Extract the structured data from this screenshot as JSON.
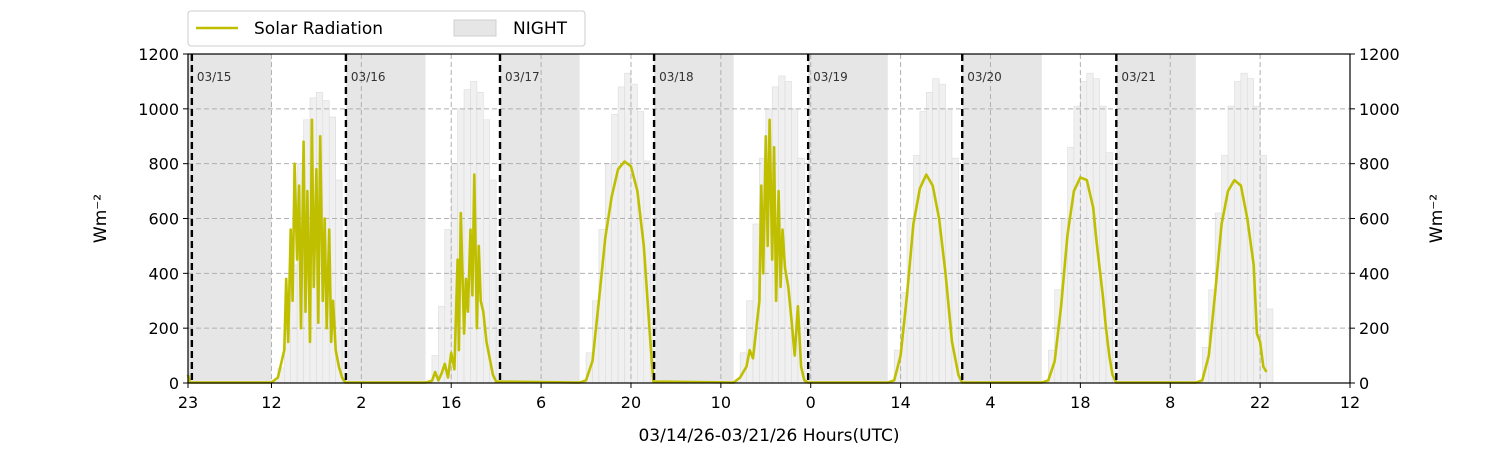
{
  "chart_data": {
    "type": "line",
    "xlabel": "03/14/26-03/21/26  Hours(UTC)",
    "ylabel_left": "Wm⁻²",
    "ylabel_right": "Wm⁻²",
    "ylim": [
      0,
      1200
    ],
    "yticks": [
      0,
      200,
      400,
      600,
      800,
      1000,
      1200
    ],
    "xlim_hours": [
      0,
      181
    ],
    "xticks": [
      {
        "hour": 0,
        "label": "23"
      },
      {
        "hour": 13,
        "label": "12"
      },
      {
        "hour": 27,
        "label": "2"
      },
      {
        "hour": 41,
        "label": "16"
      },
      {
        "hour": 55,
        "label": "6"
      },
      {
        "hour": 69,
        "label": "20"
      },
      {
        "hour": 83,
        "label": "10"
      },
      {
        "hour": 97,
        "label": "0"
      },
      {
        "hour": 111,
        "label": "14"
      },
      {
        "hour": 125,
        "label": "4"
      },
      {
        "hour": 139,
        "label": "18"
      },
      {
        "hour": 153,
        "label": "8"
      },
      {
        "hour": 167,
        "label": "22"
      },
      {
        "hour": 181,
        "label": "12"
      }
    ],
    "grid": true,
    "legend": {
      "placement": "top-left",
      "entries": [
        "Solar Radiation",
        "NIGHT"
      ]
    },
    "day_markers": [
      {
        "hour": 0.6,
        "label": "03/15"
      },
      {
        "hour": 24.6,
        "label": "03/16"
      },
      {
        "hour": 48.6,
        "label": "03/17"
      },
      {
        "hour": 72.6,
        "label": "03/18"
      },
      {
        "hour": 96.6,
        "label": "03/19"
      },
      {
        "hour": 120.6,
        "label": "03/20"
      },
      {
        "hour": 144.6,
        "label": "03/21"
      }
    ],
    "night_periods": [
      [
        0,
        13
      ],
      [
        24.6,
        37
      ],
      [
        48.6,
        61
      ],
      [
        72.6,
        85
      ],
      [
        96.6,
        109
      ],
      [
        120.6,
        133
      ],
      [
        144.6,
        157
      ]
    ],
    "clear_sky_bars": [
      [
        13,
        5
      ],
      [
        14,
        55
      ],
      [
        15,
        200
      ],
      [
        16,
        430
      ],
      [
        17,
        800
      ],
      [
        18,
        960
      ],
      [
        19,
        1040
      ],
      [
        20,
        1060
      ],
      [
        21,
        1030
      ],
      [
        22,
        970
      ],
      [
        23,
        740
      ],
      [
        24,
        350
      ],
      [
        37,
        5
      ],
      [
        38,
        100
      ],
      [
        39,
        280
      ],
      [
        40,
        560
      ],
      [
        41,
        800
      ],
      [
        42,
        1000
      ],
      [
        43,
        1070
      ],
      [
        44,
        1100
      ],
      [
        45,
        1060
      ],
      [
        46,
        960
      ],
      [
        47,
        740
      ],
      [
        48,
        400
      ],
      [
        61,
        5
      ],
      [
        62,
        110
      ],
      [
        63,
        300
      ],
      [
        64,
        560
      ],
      [
        65,
        800
      ],
      [
        66,
        980
      ],
      [
        67,
        1080
      ],
      [
        68,
        1130
      ],
      [
        69,
        1090
      ],
      [
        70,
        990
      ],
      [
        71,
        810
      ],
      [
        72,
        430
      ],
      [
        85,
        5
      ],
      [
        86,
        110
      ],
      [
        87,
        300
      ],
      [
        88,
        580
      ],
      [
        89,
        820
      ],
      [
        90,
        1000
      ],
      [
        91,
        1080
      ],
      [
        92,
        1120
      ],
      [
        93,
        1100
      ],
      [
        94,
        1000
      ],
      [
        95,
        820
      ],
      [
        96,
        500
      ],
      [
        109,
        5
      ],
      [
        110,
        120
      ],
      [
        111,
        330
      ],
      [
        112,
        600
      ],
      [
        113,
        830
      ],
      [
        114,
        990
      ],
      [
        115,
        1060
      ],
      [
        116,
        1110
      ],
      [
        117,
        1090
      ],
      [
        118,
        1000
      ],
      [
        119,
        820
      ],
      [
        120,
        560
      ],
      [
        133,
        5
      ],
      [
        134,
        120
      ],
      [
        135,
        340
      ],
      [
        136,
        600
      ],
      [
        137,
        860
      ],
      [
        138,
        1010
      ],
      [
        139,
        1100
      ],
      [
        140,
        1130
      ],
      [
        141,
        1110
      ],
      [
        142,
        1010
      ],
      [
        143,
        840
      ],
      [
        144,
        560
      ],
      [
        157,
        5
      ],
      [
        158,
        130
      ],
      [
        159,
        340
      ],
      [
        160,
        620
      ],
      [
        161,
        830
      ],
      [
        162,
        1010
      ],
      [
        163,
        1100
      ],
      [
        164,
        1130
      ],
      [
        165,
        1110
      ],
      [
        166,
        1010
      ],
      [
        167,
        830
      ],
      [
        168,
        270
      ]
    ],
    "series": [
      {
        "name": "Solar Radiation",
        "color": "#bfbf00",
        "points": [
          [
            0,
            30
          ],
          [
            0.3,
            2
          ],
          [
            13,
            2
          ],
          [
            14,
            20
          ],
          [
            15,
            120
          ],
          [
            15.3,
            380
          ],
          [
            15.6,
            150
          ],
          [
            16,
            560
          ],
          [
            16.3,
            300
          ],
          [
            16.6,
            800
          ],
          [
            17,
            450
          ],
          [
            17.3,
            720
          ],
          [
            17.6,
            200
          ],
          [
            18,
            880
          ],
          [
            18.3,
            260
          ],
          [
            18.6,
            700
          ],
          [
            19,
            150
          ],
          [
            19.3,
            960
          ],
          [
            19.6,
            350
          ],
          [
            20,
            780
          ],
          [
            20.3,
            220
          ],
          [
            20.6,
            900
          ],
          [
            21,
            300
          ],
          [
            21.3,
            600
          ],
          [
            21.6,
            200
          ],
          [
            22,
            560
          ],
          [
            22.3,
            150
          ],
          [
            22.6,
            300
          ],
          [
            23,
            120
          ],
          [
            23.5,
            60
          ],
          [
            24,
            20
          ],
          [
            24.5,
            2
          ],
          [
            37,
            2
          ],
          [
            38,
            8
          ],
          [
            38.5,
            40
          ],
          [
            39,
            10
          ],
          [
            39.5,
            35
          ],
          [
            40,
            70
          ],
          [
            40.5,
            20
          ],
          [
            41,
            110
          ],
          [
            41.5,
            50
          ],
          [
            42,
            450
          ],
          [
            42.2,
            120
          ],
          [
            42.5,
            620
          ],
          [
            43,
            180
          ],
          [
            43.3,
            380
          ],
          [
            43.6,
            260
          ],
          [
            44,
            560
          ],
          [
            44.3,
            320
          ],
          [
            44.6,
            760
          ],
          [
            45,
            200
          ],
          [
            45.3,
            500
          ],
          [
            45.6,
            300
          ],
          [
            46,
            260
          ],
          [
            46.5,
            150
          ],
          [
            47,
            90
          ],
          [
            47.5,
            30
          ],
          [
            48,
            5
          ],
          [
            61,
            2
          ],
          [
            62,
            10
          ],
          [
            63,
            80
          ],
          [
            64,
            300
          ],
          [
            65,
            530
          ],
          [
            66,
            680
          ],
          [
            67,
            780
          ],
          [
            68,
            808
          ],
          [
            69,
            790
          ],
          [
            70,
            700
          ],
          [
            71,
            500
          ],
          [
            72,
            160
          ],
          [
            72.5,
            5
          ],
          [
            85,
            2
          ],
          [
            86,
            20
          ],
          [
            87,
            60
          ],
          [
            87.5,
            120
          ],
          [
            88,
            90
          ],
          [
            89,
            300
          ],
          [
            89.3,
            720
          ],
          [
            89.6,
            400
          ],
          [
            90,
            900
          ],
          [
            90.3,
            500
          ],
          [
            90.6,
            960
          ],
          [
            91,
            450
          ],
          [
            91.3,
            860
          ],
          [
            91.6,
            300
          ],
          [
            92,
            700
          ],
          [
            92.3,
            350
          ],
          [
            92.6,
            560
          ],
          [
            93,
            420
          ],
          [
            93.5,
            350
          ],
          [
            94,
            230
          ],
          [
            94.5,
            100
          ],
          [
            95,
            280
          ],
          [
            95.5,
            60
          ],
          [
            96,
            10
          ],
          [
            96.6,
            2
          ],
          [
            109,
            2
          ],
          [
            110,
            10
          ],
          [
            111,
            100
          ],
          [
            112,
            320
          ],
          [
            113,
            580
          ],
          [
            114,
            710
          ],
          [
            115,
            760
          ],
          [
            116,
            720
          ],
          [
            117,
            600
          ],
          [
            118,
            400
          ],
          [
            119,
            150
          ],
          [
            120,
            30
          ],
          [
            120.6,
            2
          ],
          [
            133,
            2
          ],
          [
            134,
            10
          ],
          [
            135,
            80
          ],
          [
            136,
            280
          ],
          [
            137,
            540
          ],
          [
            138,
            700
          ],
          [
            139,
            750
          ],
          [
            140,
            740
          ],
          [
            141,
            640
          ],
          [
            141.5,
            520
          ],
          [
            142,
            420
          ],
          [
            142.5,
            320
          ],
          [
            143,
            200
          ],
          [
            143.5,
            100
          ],
          [
            144,
            30
          ],
          [
            144.6,
            2
          ],
          [
            157,
            2
          ],
          [
            158,
            10
          ],
          [
            159,
            100
          ],
          [
            160,
            330
          ],
          [
            161,
            580
          ],
          [
            162,
            700
          ],
          [
            163,
            740
          ],
          [
            164,
            720
          ],
          [
            165,
            600
          ],
          [
            166,
            430
          ],
          [
            166.5,
            180
          ],
          [
            167,
            150
          ],
          [
            167.5,
            60
          ],
          [
            168,
            40
          ]
        ]
      }
    ]
  }
}
